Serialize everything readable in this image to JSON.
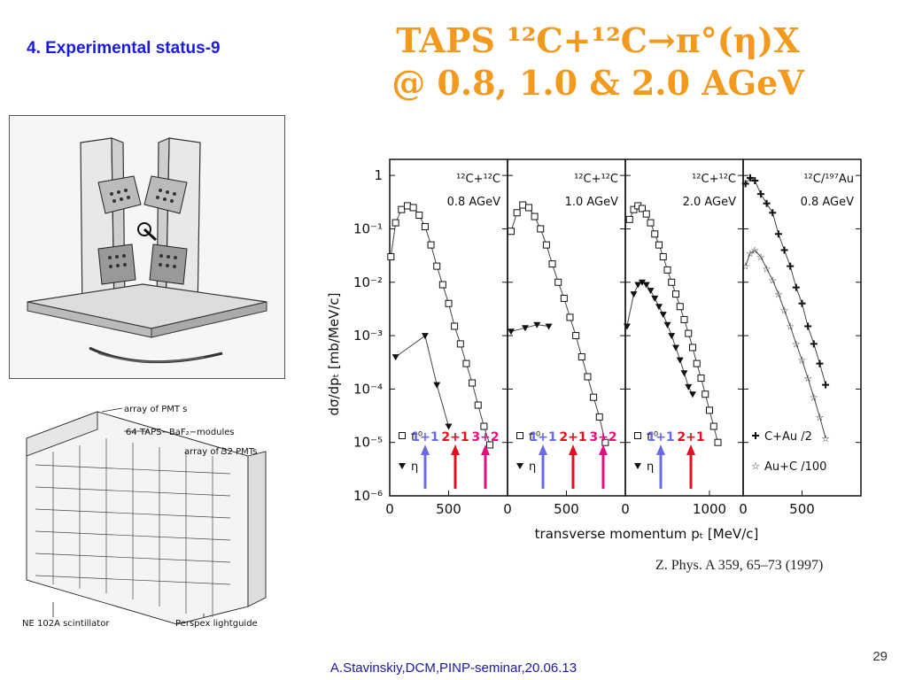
{
  "slide": {
    "section_title": "4. Experimental status-9",
    "title_line1": "TAPS  ¹²C+¹²C→π°(η)X",
    "title_line2": "@ 0.8, 1.0 & 2.0 AGeV",
    "citation": "Z. Phys. A 359, 65–73 (1997)",
    "footer": "A.Stavinskiy,DCM,PINP-seminar,20.06.13",
    "page_number": "29"
  },
  "schematic_labels": {
    "pmts": "array  of  PMT s",
    "modules": "64  TAPS−BaF₂−modules",
    "pmts32": "array of 32 PMTs",
    "scint": "NE 102A  scintillator",
    "lightguide": "Perspex  lightguide"
  },
  "chart_data": {
    "type": "scatter",
    "ylabel": "dσ/dpₜ [mb/MeV/c]",
    "xlabel": "transverse momentum pₜ [MeV/c]",
    "y_scale": "log",
    "ylim": [
      1e-06,
      2
    ],
    "y_ticks": [
      "1",
      "10⁻¹",
      "10⁻²",
      "10⁻³",
      "10⁻⁴",
      "10⁻⁵",
      "10⁻⁶"
    ],
    "panels": [
      {
        "system": "¹²C+¹²C",
        "energy": "0.8 AGeV",
        "xlim": [
          0,
          1000
        ],
        "x_ticks": [
          "0",
          "500"
        ],
        "series": [
          {
            "symbol": "square",
            "points": [
              [
                10,
                0.03
              ],
              [
                50,
                0.13
              ],
              [
                100,
                0.23
              ],
              [
                150,
                0.27
              ],
              [
                200,
                0.25
              ],
              [
                250,
                0.18
              ],
              [
                300,
                0.11
              ],
              [
                350,
                0.05
              ],
              [
                400,
                0.02
              ],
              [
                450,
                0.009
              ],
              [
                500,
                0.004
              ],
              [
                550,
                0.0015
              ],
              [
                600,
                0.0007
              ],
              [
                650,
                0.0003
              ],
              [
                700,
                0.00013
              ],
              [
                750,
                5e-05
              ],
              [
                800,
                2e-05
              ],
              [
                850,
                9e-06
              ]
            ]
          },
          {
            "symbol": "triangle",
            "points": [
              [
                50,
                0.0004
              ],
              [
                300,
                0.001
              ],
              [
                400,
                0.00012
              ],
              [
                500,
                2e-05
              ]
            ]
          }
        ],
        "legend": [
          "π⁰",
          "η"
        ],
        "arrows": [
          {
            "label": "1+1",
            "color": "#6a6ae8"
          },
          {
            "label": "2+1",
            "color": "#e0101e"
          },
          {
            "label": "3+2",
            "color": "#e0107e"
          }
        ]
      },
      {
        "system": "¹²C+¹²C",
        "energy": "1.0 AGeV",
        "xlim": [
          0,
          1000
        ],
        "x_ticks": [
          "0",
          "500"
        ],
        "series": [
          {
            "symbol": "square",
            "points": [
              [
                30,
                0.09
              ],
              [
                80,
                0.2
              ],
              [
                130,
                0.28
              ],
              [
                180,
                0.25
              ],
              [
                230,
                0.17
              ],
              [
                280,
                0.1
              ],
              [
                330,
                0.05
              ],
              [
                380,
                0.022
              ],
              [
                430,
                0.01
              ],
              [
                480,
                0.005
              ],
              [
                530,
                0.0022
              ],
              [
                580,
                0.001
              ],
              [
                630,
                0.0004
              ],
              [
                680,
                0.00017
              ],
              [
                730,
                7e-05
              ],
              [
                780,
                3e-05
              ],
              [
                830,
                1e-05
              ]
            ]
          },
          {
            "symbol": "triangle",
            "points": [
              [
                30,
                0.0012
              ],
              [
                150,
                0.0014
              ],
              [
                250,
                0.0016
              ],
              [
                350,
                0.0015
              ]
            ]
          }
        ],
        "legend": [
          "π⁰",
          "η"
        ],
        "arrows": [
          {
            "label": "1+1",
            "color": "#6a6ae8"
          },
          {
            "label": "2+1",
            "color": "#e0101e"
          },
          {
            "label": "3+2",
            "color": "#e0107e"
          }
        ]
      },
      {
        "system": "¹²C+¹²C",
        "energy": "2.0 AGeV",
        "xlim": [
          0,
          1400
        ],
        "x_ticks": [
          "0",
          "1000"
        ],
        "series": [
          {
            "symbol": "square",
            "points": [
              [
                50,
                0.15
              ],
              [
                100,
                0.23
              ],
              [
                150,
                0.27
              ],
              [
                200,
                0.24
              ],
              [
                250,
                0.19
              ],
              [
                300,
                0.13
              ],
              [
                350,
                0.08
              ],
              [
                400,
                0.05
              ],
              [
                450,
                0.03
              ],
              [
                500,
                0.017
              ],
              [
                550,
                0.01
              ],
              [
                600,
                0.006
              ],
              [
                650,
                0.0035
              ],
              [
                700,
                0.002
              ],
              [
                750,
                0.0011
              ],
              [
                800,
                0.0006
              ],
              [
                850,
                0.0003
              ],
              [
                900,
                0.00016
              ],
              [
                950,
                8e-05
              ],
              [
                1000,
                4e-05
              ],
              [
                1050,
                2e-05
              ],
              [
                1100,
                1e-05
              ]
            ]
          },
          {
            "symbol": "triangle",
            "points": [
              [
                20,
                0.0015
              ],
              [
                100,
                0.006
              ],
              [
                150,
                0.009
              ],
              [
                200,
                0.01
              ],
              [
                250,
                0.009
              ],
              [
                300,
                0.007
              ],
              [
                350,
                0.005
              ],
              [
                400,
                0.0035
              ],
              [
                450,
                0.0025
              ],
              [
                500,
                0.0016
              ],
              [
                550,
                0.001
              ],
              [
                600,
                0.0006
              ],
              [
                650,
                0.00035
              ],
              [
                700,
                0.0002
              ],
              [
                750,
                0.00011
              ],
              [
                800,
                8e-05
              ]
            ]
          }
        ],
        "legend": [
          "π⁰",
          "η"
        ],
        "arrows": [
          {
            "label": "1+1",
            "color": "#6a6ae8"
          },
          {
            "label": "2+1",
            "color": "#e0101e"
          }
        ]
      },
      {
        "system": "¹²C/¹⁹⁷Au",
        "energy": "0.8 AGeV",
        "xlim": [
          0,
          1000
        ],
        "x_ticks": [
          "0",
          "500"
        ],
        "series": [
          {
            "symbol": "cross",
            "points": [
              [
                20,
                0.7
              ],
              [
                60,
                0.9
              ],
              [
                100,
                0.8
              ],
              [
                150,
                0.45
              ],
              [
                200,
                0.3
              ],
              [
                250,
                0.2
              ],
              [
                300,
                0.08
              ],
              [
                350,
                0.04
              ],
              [
                400,
                0.02
              ],
              [
                450,
                0.008
              ],
              [
                500,
                0.004
              ],
              [
                550,
                0.0015
              ],
              [
                600,
                0.0007
              ],
              [
                650,
                0.0003
              ],
              [
                700,
                0.00012
              ]
            ]
          },
          {
            "symbol": "star",
            "points": [
              [
                20,
                0.02
              ],
              [
                60,
                0.035
              ],
              [
                100,
                0.04
              ],
              [
                150,
                0.03
              ],
              [
                200,
                0.018
              ],
              [
                250,
                0.011
              ],
              [
                300,
                0.006
              ],
              [
                350,
                0.003
              ],
              [
                400,
                0.0015
              ],
              [
                450,
                0.0007
              ],
              [
                500,
                0.00035
              ],
              [
                550,
                0.00016
              ],
              [
                600,
                7e-05
              ],
              [
                650,
                3e-05
              ],
              [
                700,
                1.2e-05
              ]
            ]
          }
        ],
        "legend": [
          "C+Au /2",
          "Au+C /100"
        ],
        "arrows": []
      }
    ]
  }
}
